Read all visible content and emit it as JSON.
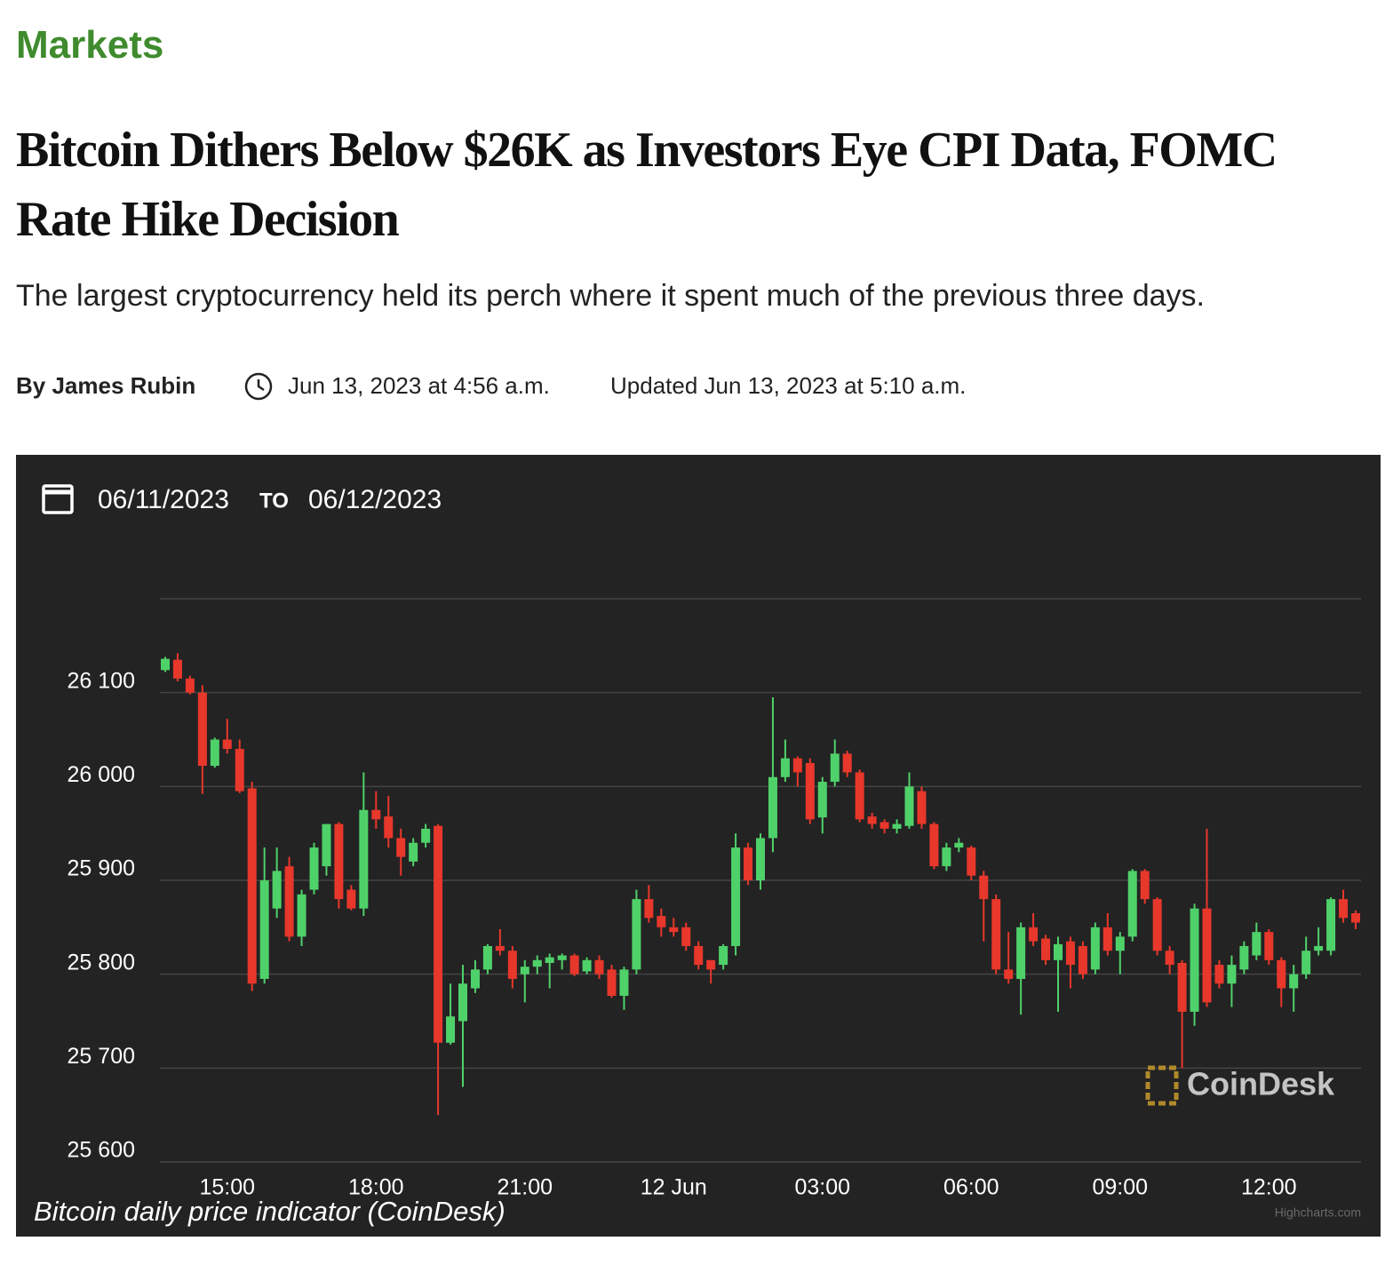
{
  "header": {
    "section": "Markets",
    "title": "Bitcoin Dithers Below $26K as Investors Eye CPI Data, FOMC Rate Hike Decision",
    "subtitle": "The largest cryptocurrency held its perch where it spent much of the previous three days.",
    "byline": "By James Rubin",
    "published": "Jun 13, 2023 at 4:56 a.m.",
    "updated": "Updated Jun 13, 2023 at 5:10 a.m."
  },
  "chart_data": {
    "type": "candlestick",
    "date_from": "06/11/2023",
    "date_to_label": "TO",
    "date_to": "06/12/2023",
    "categories": [
      "13:45",
      "14:00",
      "14:15",
      "14:30",
      "14:45",
      "15:00",
      "15:15",
      "15:30",
      "15:45",
      "16:00",
      "16:15",
      "16:30",
      "16:45",
      "17:00",
      "17:15",
      "17:30",
      "17:45",
      "18:00",
      "18:15",
      "18:30",
      "18:45",
      "19:00",
      "19:15",
      "19:30",
      "19:45",
      "20:00",
      "20:15",
      "20:30",
      "20:45",
      "21:00",
      "21:15",
      "21:30",
      "21:45",
      "22:00",
      "22:15",
      "22:30",
      "22:45",
      "23:00",
      "23:15",
      "23:30",
      "23:45",
      "00:00",
      "00:15",
      "00:30",
      "00:45",
      "01:00",
      "01:15",
      "01:30",
      "01:45",
      "02:00",
      "02:15",
      "02:30",
      "02:45",
      "03:00",
      "03:15",
      "03:30",
      "03:45",
      "04:00",
      "04:15",
      "04:30",
      "04:45",
      "05:00",
      "05:15",
      "05:30",
      "05:45",
      "06:00",
      "06:15",
      "06:30",
      "06:45",
      "07:00",
      "07:15",
      "07:30",
      "07:45",
      "08:00",
      "08:15",
      "08:30",
      "08:45",
      "09:00",
      "09:15",
      "09:30",
      "09:45",
      "10:00",
      "10:15",
      "10:30",
      "10:45",
      "11:00",
      "11:15",
      "11:30",
      "11:45",
      "12:00",
      "12:15",
      "12:30",
      "12:45",
      "13:00",
      "13:15",
      "13:30",
      "13:45"
    ],
    "open": [
      26124,
      26135,
      26115,
      26100,
      26022,
      26050,
      26040,
      25998,
      25795,
      25870,
      25915,
      25840,
      25890,
      25915,
      25960,
      25890,
      25870,
      25975,
      25968,
      25945,
      25920,
      25940,
      25958,
      25727,
      25750,
      25785,
      25805,
      25830,
      25825,
      25800,
      25808,
      25812,
      25815,
      25820,
      25803,
      25815,
      25805,
      25777,
      25805,
      25880,
      25862,
      25850,
      25850,
      25830,
      25815,
      25810,
      25830,
      25935,
      25900,
      25945,
      26010,
      26030,
      26025,
      25967,
      26005,
      26035,
      26015,
      25968,
      25962,
      25955,
      25958,
      25995,
      25960,
      25915,
      25935,
      25935,
      25905,
      25880,
      25805,
      25795,
      25850,
      25838,
      25815,
      25835,
      25830,
      25805,
      25850,
      25825,
      25840,
      25910,
      25880,
      25825,
      25812,
      25760,
      25870,
      25810,
      25790,
      25805,
      25820,
      25845,
      25815,
      25785,
      25800,
      25825,
      25825,
      25880,
      25865
    ],
    "high": [
      26138,
      26142,
      26118,
      26108,
      26052,
      26072,
      26050,
      26005,
      25935,
      25935,
      25925,
      25890,
      25940,
      25960,
      25962,
      25895,
      26015,
      25995,
      25990,
      25955,
      25945,
      25960,
      25960,
      25790,
      25810,
      25815,
      25832,
      25848,
      25830,
      25815,
      25820,
      25822,
      25822,
      25822,
      25818,
      25820,
      25810,
      25808,
      25890,
      25895,
      25870,
      25860,
      25855,
      25835,
      25815,
      25832,
      25950,
      25940,
      25950,
      26095,
      26050,
      26032,
      26030,
      26010,
      26050,
      26038,
      26018,
      25972,
      25965,
      25965,
      26015,
      26000,
      25962,
      25940,
      25945,
      25937,
      25910,
      25885,
      25845,
      25855,
      25865,
      25842,
      25840,
      25840,
      25835,
      25855,
      25865,
      25845,
      25912,
      25912,
      25882,
      25830,
      25815,
      25875,
      25955,
      25815,
      25820,
      25835,
      25855,
      25848,
      25818,
      25810,
      25840,
      25850,
      25882,
      25890,
      25868
    ],
    "low": [
      26122,
      26112,
      26098,
      25992,
      26020,
      26035,
      25993,
      25782,
      25790,
      25860,
      25835,
      25830,
      25885,
      25905,
      25870,
      25868,
      25862,
      25955,
      25935,
      25905,
      25915,
      25935,
      25650,
      25725,
      25680,
      25780,
      25800,
      25820,
      25785,
      25770,
      25800,
      25785,
      25805,
      25798,
      25800,
      25795,
      25775,
      25762,
      25800,
      25855,
      25840,
      25840,
      25825,
      25805,
      25790,
      25805,
      25820,
      25895,
      25890,
      25930,
      26005,
      26000,
      25960,
      25950,
      26000,
      26010,
      25962,
      25955,
      25950,
      25950,
      25955,
      25955,
      25912,
      25910,
      25930,
      25900,
      25835,
      25800,
      25790,
      25757,
      25830,
      25810,
      25760,
      25785,
      25795,
      25800,
      25820,
      25800,
      25835,
      25875,
      25820,
      25800,
      25700,
      25745,
      25765,
      25785,
      25765,
      25800,
      25815,
      25810,
      25765,
      25760,
      25795,
      25820,
      25820,
      25855,
      25848
    ],
    "close": [
      26136,
      26115,
      26100,
      26022,
      26050,
      26040,
      25995,
      25790,
      25900,
      25910,
      25840,
      25885,
      25935,
      25960,
      25880,
      25870,
      25975,
      25965,
      25945,
      25925,
      25940,
      25955,
      25727,
      25755,
      25790,
      25805,
      25830,
      25825,
      25795,
      25808,
      25815,
      25818,
      25820,
      25800,
      25815,
      25800,
      25777,
      25805,
      25880,
      25860,
      25850,
      25845,
      25830,
      25810,
      25805,
      25830,
      25935,
      25900,
      25945,
      26010,
      26030,
      26015,
      25965,
      26005,
      26035,
      26015,
      25965,
      25960,
      25955,
      25960,
      26000,
      25960,
      25915,
      25935,
      25940,
      25905,
      25880,
      25805,
      25795,
      25850,
      25835,
      25815,
      25832,
      25810,
      25800,
      25850,
      25825,
      25840,
      25910,
      25880,
      25825,
      25810,
      25760,
      25870,
      25770,
      25790,
      25810,
      25830,
      25845,
      25815,
      25785,
      25800,
      25825,
      25830,
      25880,
      25860,
      25855
    ],
    "up_color": "#4fd16a",
    "down_color": "#e8372b",
    "ylim": [
      25600,
      26200
    ],
    "yticks": [
      {
        "value": 25600,
        "label": "25 600"
      },
      {
        "value": 25700,
        "label": "25 700"
      },
      {
        "value": 25800,
        "label": "25 800"
      },
      {
        "value": 25900,
        "label": "25 900"
      },
      {
        "value": 26000,
        "label": "26 000"
      },
      {
        "value": 26100,
        "label": "26 100"
      }
    ],
    "xticks": [
      {
        "value": "15:00",
        "label": "15:00"
      },
      {
        "value": "18:00",
        "label": "18:00"
      },
      {
        "value": "21:00",
        "label": "21:00"
      },
      {
        "value": "00:00",
        "label": "12 Jun"
      },
      {
        "value": "03:00",
        "label": "03:00"
      },
      {
        "value": "06:00",
        "label": "06:00"
      },
      {
        "value": "09:00",
        "label": "09:00"
      },
      {
        "value": "12:00",
        "label": "12:00"
      }
    ],
    "grid": true,
    "watermark": "CoinDesk",
    "credits": "Highcharts.com"
  },
  "caption": "Bitcoin daily price indicator (CoinDesk)"
}
